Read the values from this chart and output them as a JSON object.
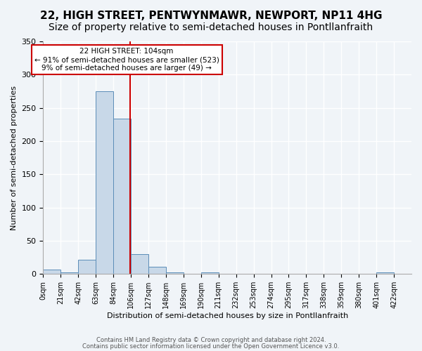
{
  "title1": "22, HIGH STREET, PENTWYNMAWR, NEWPORT, NP11 4HG",
  "title2": "Size of property relative to semi-detached houses in Pontllanfraith",
  "xlabel": "Distribution of semi-detached houses by size in Pontllanfraith",
  "ylabel": "Number of semi-detached properties",
  "bar_labels": [
    "0sqm",
    "21sqm",
    "42sqm",
    "63sqm",
    "84sqm",
    "106sqm",
    "127sqm",
    "148sqm",
    "169sqm",
    "190sqm",
    "211sqm",
    "232sqm",
    "253sqm",
    "274sqm",
    "295sqm",
    "317sqm",
    "338sqm",
    "359sqm",
    "380sqm",
    "401sqm",
    "422sqm"
  ],
  "bar_values": [
    7,
    3,
    22,
    275,
    234,
    30,
    11,
    3,
    0,
    3,
    0,
    0,
    0,
    0,
    0,
    0,
    0,
    0,
    0,
    3,
    0
  ],
  "bin_width": 21,
  "property_size": 104,
  "bar_color": "#c8d8e8",
  "bar_edge_color": "#5b8db8",
  "vline_color": "#cc0000",
  "annotation_text": "22 HIGH STREET: 104sqm\n← 91% of semi-detached houses are smaller (523)\n9% of semi-detached houses are larger (49) →",
  "annotation_box_color": "#ffffff",
  "annotation_box_edge": "#cc0000",
  "ylim": [
    0,
    350
  ],
  "yticks": [
    0,
    50,
    100,
    150,
    200,
    250,
    300,
    350
  ],
  "footer1": "Contains HM Land Registry data © Crown copyright and database right 2024.",
  "footer2": "Contains public sector information licensed under the Open Government Licence v3.0.",
  "bg_color": "#f0f4f8",
  "grid_color": "#ffffff",
  "title1_fontsize": 11,
  "title2_fontsize": 10
}
